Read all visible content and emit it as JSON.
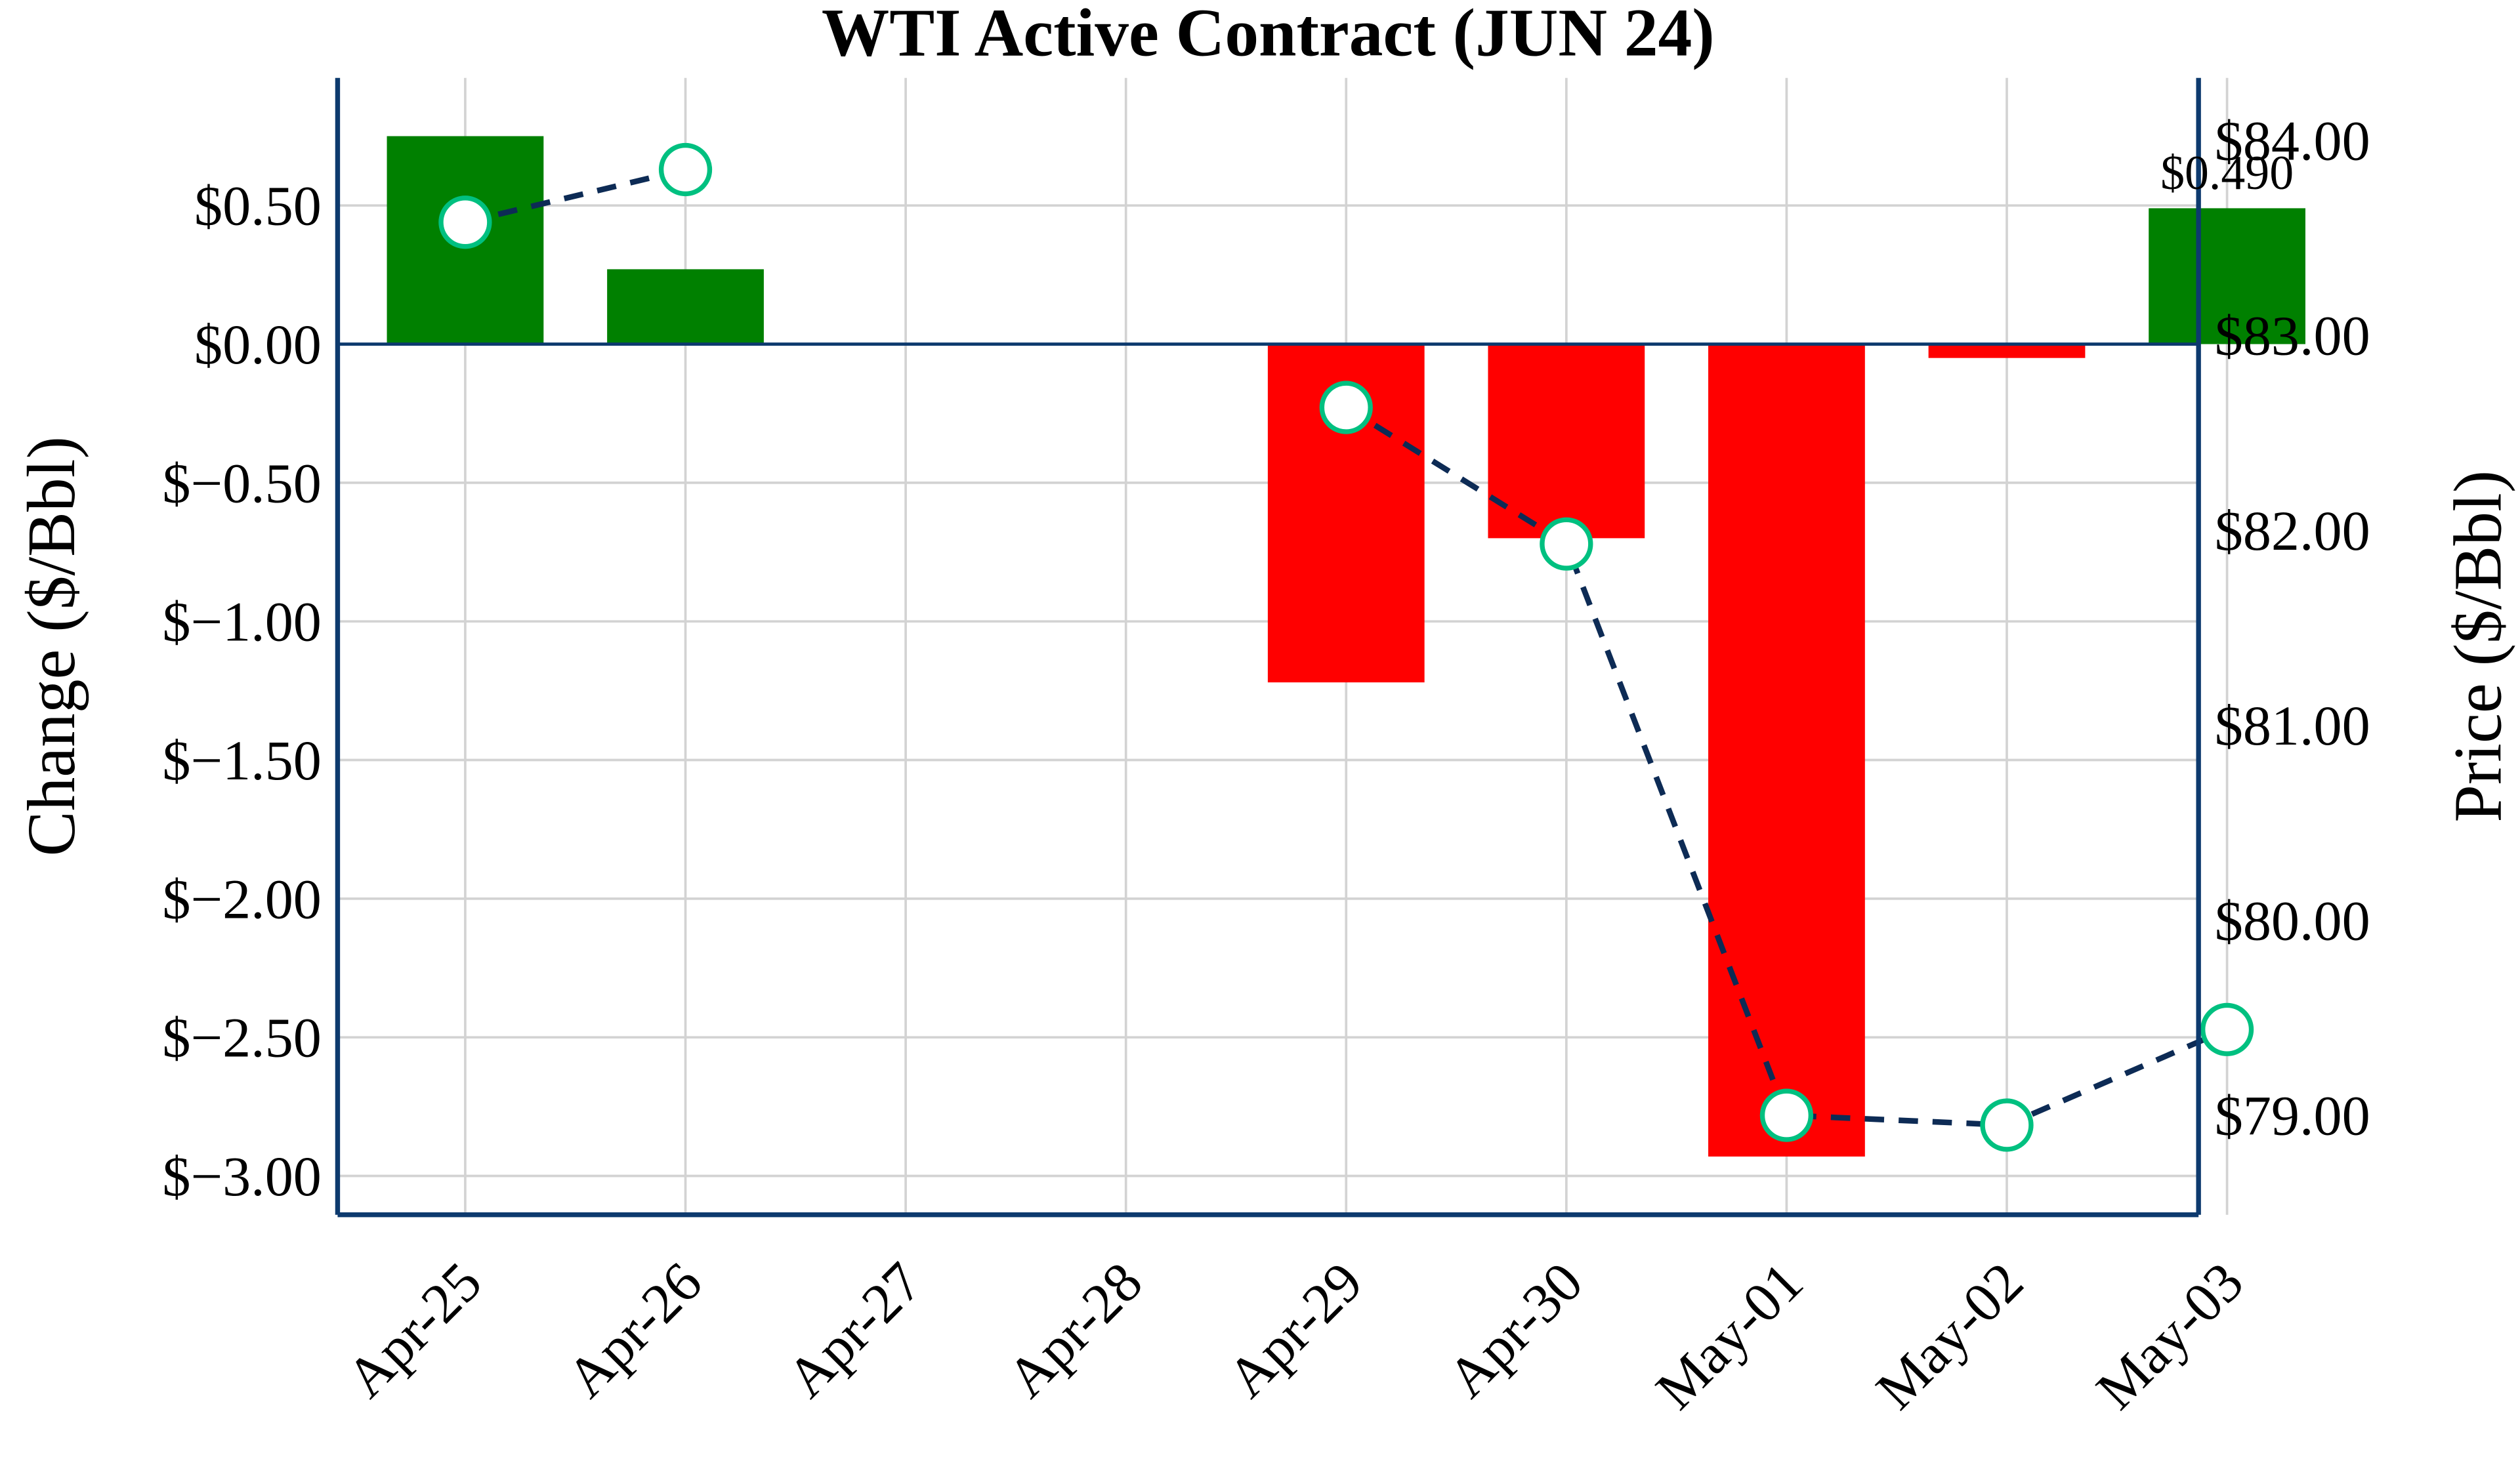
{
  "chart_data": {
    "type": "bar+line",
    "title": "WTI Active Contract (JUN 24)",
    "categories": [
      "Apr-25",
      "Apr-26",
      "Apr-27",
      "Apr-28",
      "Apr-29",
      "Apr-30",
      "May-01",
      "May-02",
      "May-03"
    ],
    "series": [
      {
        "name": "Change",
        "type": "bar",
        "axis": "left",
        "values": [
          0.75,
          0.27,
          null,
          null,
          -1.22,
          -0.7,
          -2.93,
          -0.05,
          0.49
        ]
      },
      {
        "name": "Price",
        "type": "line",
        "axis": "right",
        "values": [
          83.58,
          83.85,
          null,
          null,
          82.63,
          81.93,
          79.0,
          78.95,
          79.44
        ]
      }
    ],
    "ylabel": "Change ($/Bbl)",
    "y2label": "Price ($/Bbl)",
    "ylim": [
      -3.14,
      0.96
    ],
    "y2lim": [
      78.49,
      84.32
    ],
    "yticks": [
      "$0.50",
      "$0.00",
      "$−0.50",
      "$−1.00",
      "$−1.50",
      "$−2.00",
      "$−2.50",
      "$−3.00"
    ],
    "ytick_values": [
      0.5,
      0,
      -0.5,
      -1,
      -1.5,
      -2,
      -2.5,
      -3
    ],
    "y2ticks": [
      "$84.00",
      "$83.00",
      "$82.00",
      "$81.00",
      "$80.00",
      "$79.00"
    ],
    "y2tick_values": [
      84,
      83,
      82,
      81,
      80,
      79
    ],
    "annotation": {
      "category": "May-03",
      "text": "$0.490"
    },
    "grid": true,
    "colors": {
      "positive": "#008000",
      "negative": "#ff0000",
      "line": "#0d2b55",
      "marker_edge": "#00c080",
      "axis": "#0d3a6e",
      "grid": "#d3d3d3"
    }
  }
}
